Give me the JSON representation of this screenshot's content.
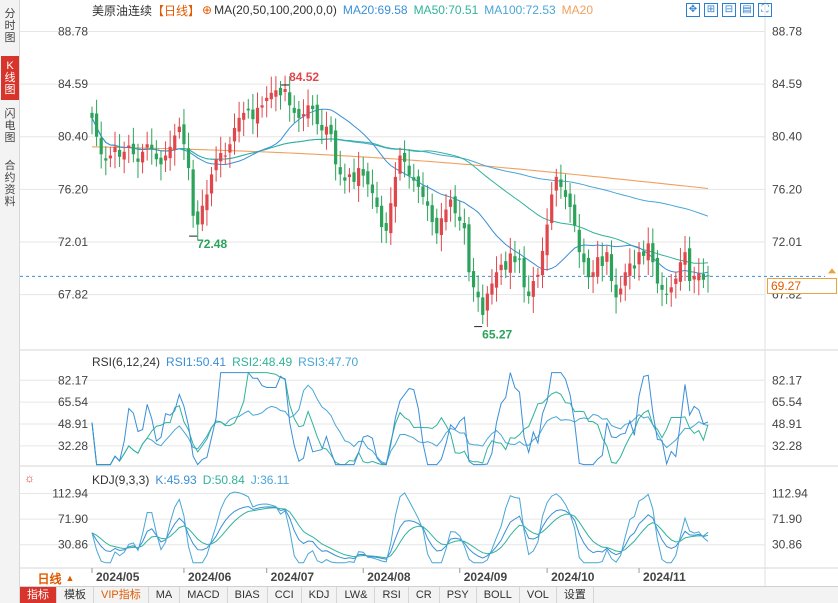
{
  "side_tabs": [
    {
      "label": "分时图",
      "active": false
    },
    {
      "label": "K线图",
      "active": true
    },
    {
      "label": "闪电图",
      "active": false
    },
    {
      "label": "合约资料",
      "active": false
    }
  ],
  "main_legend": {
    "title": "美原油连续",
    "period": "【日线】",
    "settings_icon": "⊕",
    "ma_params": "MA(20,50,100,200,0,0)",
    "ma20": "MA20:69.58",
    "ma50": "MA50:70.51",
    "ma100": "MA100:72.53",
    "ma200": "MA20"
  },
  "toolbar_icons": [
    "move-icon",
    "zoom-in-icon",
    "zoom-out-icon",
    "chart-type-icon",
    "fullscreen-icon"
  ],
  "toolbar_glyphs": [
    "✥",
    "⊞",
    "⊟",
    "▤",
    "⛶"
  ],
  "rsi_legend": {
    "params": "RSI(6,12,24)",
    "rsi1": "RSI1:50.41",
    "rsi2": "RSI2:48.49",
    "rsi3": "RSI3:47.70"
  },
  "kdj_legend": {
    "params": "KDJ(9,3,3)",
    "k": "K:45.93",
    "d": "D:50.84",
    "j": "J:36.11"
  },
  "period_chip": {
    "label": "日线",
    "arrow": "▲"
  },
  "last_price": "69.27",
  "indicator_tabs": [
    "指标",
    "模板",
    "VIP指标",
    "MA",
    "MACD",
    "BIAS",
    "CCI",
    "KDJ",
    "LW&",
    "RSI",
    "CR",
    "PSY",
    "BOLL",
    "VOL",
    "设置"
  ],
  "colors": {
    "up": "#e0474c",
    "down": "#2ba35a",
    "ma20": "#3a8fd8",
    "ma50": "#2fb39a",
    "ma100": "#49a6d6",
    "ma200": "#f0a060",
    "grid": "#e6e6e6",
    "accent": "#d9342b",
    "last_price_line": "#3a8fd8"
  },
  "chart_data": [
    {
      "type": "candlestick",
      "title": "美原油连续【日线】",
      "y_ticks": [
        "88.78",
        "84.59",
        "80.40",
        "76.20",
        "72.01",
        "67.82"
      ],
      "ylim": [
        64.6,
        89.7
      ],
      "x_ticks": [
        "2024/05",
        "2024/06",
        "2024/07",
        "2024/08",
        "2024/09",
        "2024/10",
        "2024/11"
      ],
      "x_tick_index": [
        0,
        20,
        38,
        59,
        80,
        99,
        119
      ],
      "annotations": [
        {
          "text": "84.52",
          "index": 42,
          "value": 84.52,
          "kind": "high"
        },
        {
          "text": "72.48",
          "index": 22,
          "value": 72.48,
          "kind": "low"
        },
        {
          "text": "65.27",
          "index": 84,
          "value": 65.27,
          "kind": "low"
        }
      ],
      "last_price": 69.27,
      "closes": [
        81.9,
        80.4,
        79.0,
        78.5,
        78.9,
        79.6,
        78.8,
        79.2,
        79.7,
        79.0,
        78.4,
        79.2,
        79.8,
        79.4,
        78.6,
        78.2,
        78.9,
        79.6,
        80.5,
        81.2,
        79.8,
        77.9,
        74.1,
        73.4,
        74.9,
        75.8,
        77.4,
        78.6,
        79.1,
        78.9,
        79.8,
        81.1,
        81.9,
        82.3,
        82.5,
        81.8,
        82.7,
        82.9,
        83.5,
        83.9,
        84.1,
        83.7,
        84.2,
        82.9,
        82.3,
        81.9,
        82.2,
        82.9,
        82.6,
        81.4,
        80.9,
        81.2,
        80.6,
        78.2,
        77.4,
        76.9,
        77.4,
        76.8,
        77.9,
        77.3,
        76.6,
        75.9,
        74.8,
        73.2,
        72.9,
        75.1,
        77.2,
        78.9,
        78.4,
        77.3,
        76.9,
        76.4,
        75.6,
        74.9,
        73.6,
        72.7,
        73.9,
        74.6,
        75.4,
        74.3,
        73.7,
        73.1,
        69.6,
        68.4,
        67.6,
        66.2,
        67.9,
        68.7,
        69.6,
        70.2,
        69.8,
        71.1,
        70.4,
        70.6,
        68.4,
        67.7,
        68.9,
        69.4,
        71.3,
        73.4,
        75.8,
        77.2,
        76.4,
        75.6,
        74.8,
        73.3,
        71.2,
        70.4,
        69.2,
        69.6,
        70.8,
        70.1,
        71.2,
        68.9,
        67.6,
        68.3,
        69.6,
        70.3,
        69.9,
        71.2,
        70.9,
        71.9,
        70.4,
        68.7,
        68.2,
        67.8,
        68.4,
        69.1,
        70.4,
        71.2,
        68.9,
        69.3,
        69.5,
        69.0,
        69.27
      ],
      "ma20_end": 69.58,
      "ma50_end": 70.51,
      "ma100_end": 72.53
    },
    {
      "type": "line",
      "title": "RSI(6,12,24)",
      "y_ticks": [
        "82.17",
        "65.54",
        "48.91",
        "32.28"
      ],
      "ylim": [
        20,
        90
      ],
      "series": [
        {
          "name": "RSI1",
          "last": 50.41
        },
        {
          "name": "RSI2",
          "last": 48.49
        },
        {
          "name": "RSI3",
          "last": 47.7
        }
      ]
    },
    {
      "type": "line",
      "title": "KDJ(9,3,3)",
      "y_ticks": [
        "112.94",
        "71.90",
        "30.86"
      ],
      "ylim": [
        0,
        125
      ],
      "series": [
        {
          "name": "K",
          "last": 45.93
        },
        {
          "name": "D",
          "last": 50.84
        },
        {
          "name": "J",
          "last": 36.11
        }
      ]
    }
  ]
}
